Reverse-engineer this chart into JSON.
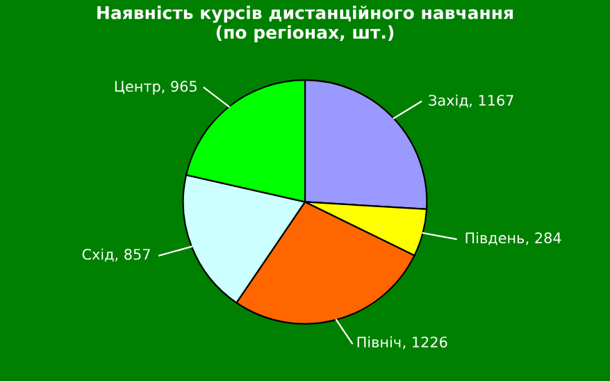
{
  "chart_data": {
    "type": "pie",
    "title": "Наявність курсів дистанційного навчання\n(по регіонах, шт.)",
    "categories": [
      "Захід",
      "Південь",
      "Північ",
      "Схід",
      "Центр"
    ],
    "values": [
      1167,
      284,
      1226,
      857,
      965
    ],
    "colors": [
      "#9999ff",
      "#ffff00",
      "#ff6600",
      "#ccffff",
      "#00ff00"
    ],
    "value_labels": [
      ", 1167",
      ", 284",
      ", 1226",
      ", 857",
      ", 965"
    ],
    "legend": false
  }
}
